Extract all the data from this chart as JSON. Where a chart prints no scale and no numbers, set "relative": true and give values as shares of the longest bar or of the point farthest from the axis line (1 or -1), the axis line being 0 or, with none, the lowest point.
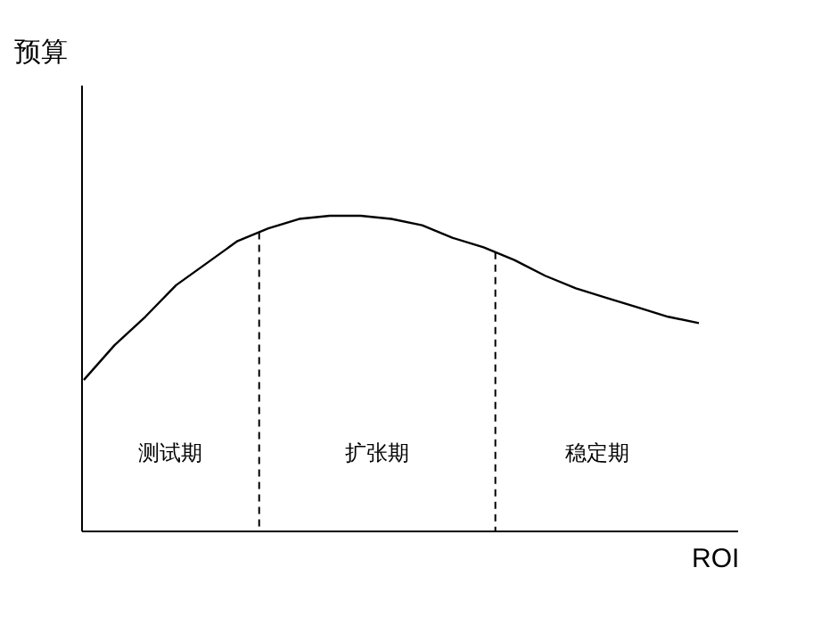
{
  "chart_data": {
    "type": "line",
    "relative": true,
    "xlabel": "ROI",
    "categories": [
      null,
      null,
      null,
      null,
      null,
      null,
      null,
      null,
      null,
      null,
      null,
      null,
      null,
      null,
      null,
      null,
      null,
      null,
      null,
      null,
      null
    ],
    "series": [
      {
        "color": "#000000",
        "values": [
          0.48,
          0.59,
          0.68,
          0.78,
          0.85,
          0.92,
          0.96,
          0.99,
          1.0,
          1.0,
          0.99,
          0.97,
          0.93,
          0.9,
          0.86,
          0.81,
          0.77,
          0.74,
          0.71,
          0.68,
          0.66
        ]
      }
    ],
    "annotations": [
      "预算",
      "测试期",
      "扩张期",
      "稳定期"
    ]
  }
}
